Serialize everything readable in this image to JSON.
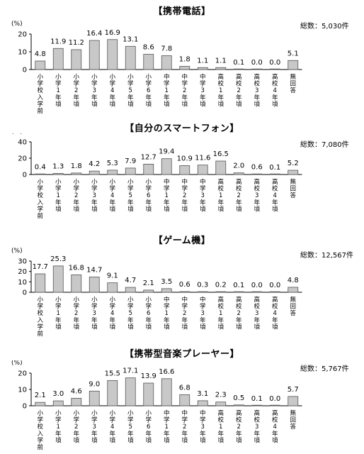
{
  "chart_data": [
    {
      "type": "bar",
      "title": "【携帯電話】",
      "unit": "(%)",
      "total_label": "総数：",
      "total": "5,030件",
      "ylim": [
        0,
        20
      ],
      "yticks": [
        "0",
        "10",
        "20"
      ],
      "categories": [
        "小学校入学前",
        "小学1年頃",
        "小学2年頃",
        "小学3年頃",
        "小学4年頃",
        "小学5年頃",
        "小学6年頃",
        "中学1年頃",
        "中学2年頃",
        "中学3年頃",
        "高校1年頃",
        "高校2年頃",
        "高校3年頃",
        "高校4年頃",
        "無回答"
      ],
      "values": [
        4.8,
        11.9,
        11.2,
        16.4,
        16.9,
        13.1,
        8.6,
        7.8,
        1.8,
        1.1,
        1.1,
        0.1,
        0.0,
        0.0,
        5.1
      ],
      "value_labels": [
        "4.8",
        "11.9",
        "11.2",
        "16.4",
        "16.9",
        "13.1",
        "8.6",
        "7.8",
        "1.8",
        "1.1",
        "1.1",
        "0.1",
        "0.0",
        "0.0",
        "5.1"
      ],
      "colors": {
        "bar_fill": "#c8c8c8",
        "bar_stroke": "#555555"
      }
    },
    {
      "type": "bar",
      "title": "【自分のスマートフォン】",
      "unit": "(%)",
      "total_label": "総数：",
      "total": "7,080件",
      "ylim": [
        0,
        40
      ],
      "yticks": [
        "0",
        "20",
        "40"
      ],
      "categories": [
        "小学校入学前",
        "小学1年頃",
        "小学2年頃",
        "小学3年頃",
        "小学4年頃",
        "小学5年頃",
        "小学6年頃",
        "中学1年頃",
        "中学2年頃",
        "中学3年頃",
        "高校1年頃",
        "高校2年頃",
        "高校3年頃",
        "高校4年頃",
        "無回答"
      ],
      "values": [
        0.4,
        1.3,
        1.8,
        4.2,
        5.3,
        7.9,
        12.7,
        19.4,
        10.9,
        11.6,
        16.5,
        2.0,
        0.6,
        0.1,
        5.2
      ],
      "value_labels": [
        "0.4",
        "1.3",
        "1.8",
        "4.2",
        "5.3",
        "7.9",
        "12.7",
        "19.4",
        "10.9",
        "11.6",
        "16.5",
        "2.0",
        "0.6",
        "0.1",
        "5.2"
      ],
      "colors": {
        "bar_fill": "#c8c8c8",
        "bar_stroke": "#555555"
      }
    },
    {
      "type": "bar",
      "title": "【ゲーム機】",
      "unit": "(%)",
      "total_label": "総数：",
      "total": "12,567件",
      "ylim": [
        0,
        30
      ],
      "yticks": [
        "0",
        "10",
        "20",
        "30"
      ],
      "categories": [
        "小学校入学前",
        "小学1年頃",
        "小学2年頃",
        "小学3年頃",
        "小学4年頃",
        "小学5年頃",
        "小学6年頃",
        "中学1年頃",
        "中学2年頃",
        "中学3年頃",
        "高校1年頃",
        "高校2年頃",
        "高校3年頃",
        "高校4年頃",
        "無回答"
      ],
      "values": [
        17.7,
        25.3,
        16.8,
        14.7,
        9.1,
        4.7,
        2.1,
        3.5,
        0.6,
        0.3,
        0.2,
        0.1,
        0.0,
        0.0,
        4.8
      ],
      "value_labels": [
        "17.7",
        "25.3",
        "16.8",
        "14.7",
        "9.1",
        "4.7",
        "2.1",
        "3.5",
        "0.6",
        "0.3",
        "0.2",
        "0.1",
        "0.0",
        "0.0",
        "4.8"
      ],
      "colors": {
        "bar_fill": "#c8c8c8",
        "bar_stroke": "#555555"
      }
    },
    {
      "type": "bar",
      "title": "【携帯型音楽プレーヤー】",
      "unit": "(%)",
      "total_label": "総数：",
      "total": "5,767件",
      "ylim": [
        0,
        20
      ],
      "yticks": [
        "0",
        "10",
        "20"
      ],
      "categories": [
        "小学校入学前",
        "小学1年頃",
        "小学2年頃",
        "小学3年頃",
        "小学4年頃",
        "小学5年頃",
        "小学6年頃",
        "中学1年頃",
        "中学2年頃",
        "中学3年頃",
        "高校1年頃",
        "高校2年頃",
        "高校3年頃",
        "高校4年頃",
        "無回答"
      ],
      "values": [
        2.1,
        3.0,
        4.6,
        9.0,
        15.5,
        17.1,
        13.9,
        16.6,
        6.8,
        3.1,
        2.3,
        0.5,
        0.1,
        0.0,
        5.7
      ],
      "value_labels": [
        "2.1",
        "3.0",
        "4.6",
        "9.0",
        "15.5",
        "17.1",
        "13.9",
        "16.6",
        "6.8",
        "3.1",
        "2.3",
        "0.5",
        "0.1",
        "0.0",
        "5.7"
      ],
      "colors": {
        "bar_fill": "#c8c8c8",
        "bar_stroke": "#555555"
      }
    }
  ]
}
